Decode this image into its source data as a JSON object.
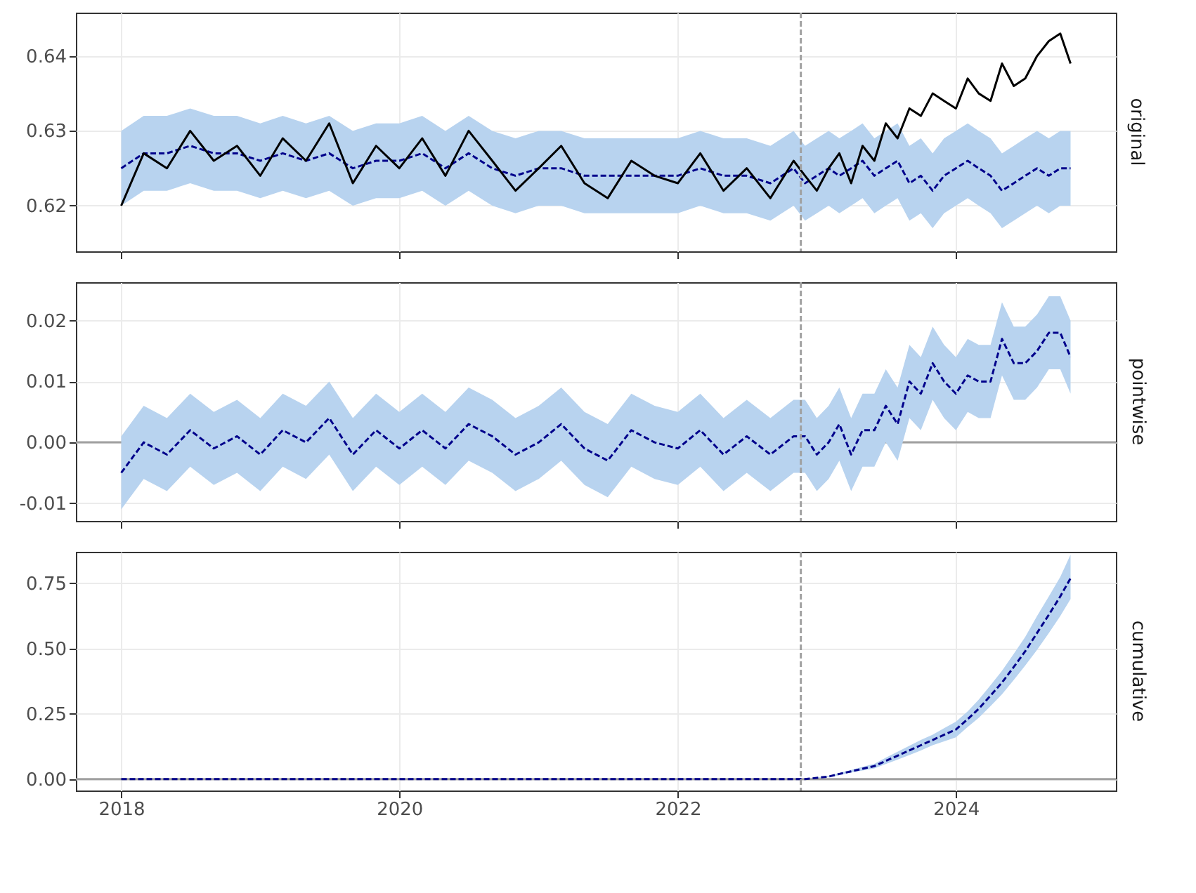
{
  "chart_data": [
    {
      "type": "line",
      "y2label": "original",
      "x": [
        "2018-01-01",
        "2018-03-01",
        "2018-05-01",
        "2018-07-01",
        "2018-09-01",
        "2018-11-01",
        "2019-01-01",
        "2019-03-01",
        "2019-05-01",
        "2019-07-01",
        "2019-09-01",
        "2019-11-01",
        "2020-01-01",
        "2020-03-01",
        "2020-05-01",
        "2020-07-01",
        "2020-09-01",
        "2020-11-01",
        "2021-01-01",
        "2021-03-01",
        "2021-05-01",
        "2021-07-01",
        "2021-09-01",
        "2021-11-01",
        "2022-01-01",
        "2022-03-01",
        "2022-05-01",
        "2022-07-01",
        "2022-09-01",
        "2022-11-01",
        "2022-12-01",
        "2023-01-01",
        "2023-02-01",
        "2023-03-01",
        "2023-04-01",
        "2023-05-01",
        "2023-06-01",
        "2023-07-01",
        "2023-08-01",
        "2023-09-01",
        "2023-10-01",
        "2023-11-01",
        "2023-12-01",
        "2024-01-01",
        "2024-02-01",
        "2024-03-01",
        "2024-04-01",
        "2024-05-01",
        "2024-06-01",
        "2024-07-01",
        "2024-08-01",
        "2024-09-01",
        "2024-10-01",
        "2024-10-28"
      ],
      "xlim": [
        "2017-09-04",
        "2025-02-24"
      ],
      "xticks": [
        "2018",
        "2020",
        "2022",
        "2024"
      ],
      "ylim": [
        0.6139,
        0.6458
      ],
      "yticks": [
        0.62,
        0.63,
        0.64
      ],
      "grid": true,
      "tick_labels": "y",
      "ref_lines": [
        {
          "axis": "x",
          "value": "2022-11-20",
          "color": "#a0a0a0",
          "line_style": "dashed"
        }
      ],
      "series": [
        {
          "color": "#00008b",
          "line_style": "dashed",
          "values": [
            0.625,
            0.627,
            0.627,
            0.628,
            0.627,
            0.627,
            0.626,
            0.627,
            0.626,
            0.627,
            0.625,
            0.626,
            0.626,
            0.627,
            0.625,
            0.627,
            0.625,
            0.624,
            0.625,
            0.625,
            0.624,
            0.624,
            0.624,
            0.624,
            0.624,
            0.625,
            0.624,
            0.624,
            0.623,
            0.625,
            0.623,
            0.624,
            0.625,
            0.624,
            0.625,
            0.626,
            0.624,
            0.625,
            0.626,
            0.623,
            0.624,
            0.622,
            0.624,
            0.625,
            0.626,
            0.625,
            0.624,
            0.622,
            0.623,
            0.624,
            0.625,
            0.624,
            0.625,
            0.625
          ],
          "lower": [
            0.62,
            0.622,
            0.622,
            0.623,
            0.622,
            0.622,
            0.621,
            0.622,
            0.621,
            0.622,
            0.62,
            0.621,
            0.621,
            0.622,
            0.62,
            0.622,
            0.62,
            0.619,
            0.62,
            0.62,
            0.619,
            0.619,
            0.619,
            0.619,
            0.619,
            0.62,
            0.619,
            0.619,
            0.618,
            0.62,
            0.618,
            0.619,
            0.62,
            0.619,
            0.62,
            0.621,
            0.619,
            0.62,
            0.621,
            0.618,
            0.619,
            0.617,
            0.619,
            0.62,
            0.621,
            0.62,
            0.619,
            0.617,
            0.618,
            0.619,
            0.62,
            0.619,
            0.62,
            0.62
          ],
          "upper": [
            0.63,
            0.632,
            0.632,
            0.633,
            0.632,
            0.632,
            0.631,
            0.632,
            0.631,
            0.632,
            0.63,
            0.631,
            0.631,
            0.632,
            0.63,
            0.632,
            0.63,
            0.629,
            0.63,
            0.63,
            0.629,
            0.629,
            0.629,
            0.629,
            0.629,
            0.63,
            0.629,
            0.629,
            0.628,
            0.63,
            0.628,
            0.629,
            0.63,
            0.629,
            0.63,
            0.631,
            0.629,
            0.63,
            0.631,
            0.628,
            0.629,
            0.627,
            0.629,
            0.63,
            0.631,
            0.63,
            0.629,
            0.627,
            0.628,
            0.629,
            0.63,
            0.629,
            0.63,
            0.63
          ]
        },
        {
          "color": "#000000",
          "line_style": "solid",
          "values": [
            0.62,
            0.627,
            0.625,
            0.63,
            0.626,
            0.628,
            0.624,
            0.629,
            0.626,
            0.631,
            0.623,
            0.628,
            0.625,
            0.629,
            0.624,
            0.63,
            0.626,
            0.622,
            0.625,
            0.628,
            0.623,
            0.621,
            0.626,
            0.624,
            0.623,
            0.627,
            0.622,
            0.625,
            0.621,
            0.626,
            0.624,
            0.622,
            0.625,
            0.627,
            0.623,
            0.628,
            0.626,
            0.631,
            0.629,
            0.633,
            0.632,
            0.635,
            0.634,
            0.633,
            0.637,
            0.635,
            0.634,
            0.639,
            0.636,
            0.637,
            0.64,
            0.642,
            0.643,
            0.639
          ]
        }
      ]
    },
    {
      "type": "line",
      "y2label": "pointwise",
      "x": [
        "2018-01-01",
        "2018-03-01",
        "2018-05-01",
        "2018-07-01",
        "2018-09-01",
        "2018-11-01",
        "2019-01-01",
        "2019-03-01",
        "2019-05-01",
        "2019-07-01",
        "2019-09-01",
        "2019-11-01",
        "2020-01-01",
        "2020-03-01",
        "2020-05-01",
        "2020-07-01",
        "2020-09-01",
        "2020-11-01",
        "2021-01-01",
        "2021-03-01",
        "2021-05-01",
        "2021-07-01",
        "2021-09-01",
        "2021-11-01",
        "2022-01-01",
        "2022-03-01",
        "2022-05-01",
        "2022-07-01",
        "2022-09-01",
        "2022-11-01",
        "2022-12-01",
        "2023-01-01",
        "2023-02-01",
        "2023-03-01",
        "2023-04-01",
        "2023-05-01",
        "2023-06-01",
        "2023-07-01",
        "2023-08-01",
        "2023-09-01",
        "2023-10-01",
        "2023-11-01",
        "2023-12-01",
        "2024-01-01",
        "2024-02-01",
        "2024-03-01",
        "2024-04-01",
        "2024-05-01",
        "2024-06-01",
        "2024-07-01",
        "2024-08-01",
        "2024-09-01",
        "2024-10-01",
        "2024-10-28"
      ],
      "xlim": [
        "2017-09-04",
        "2025-02-24"
      ],
      "xticks": [
        "2018",
        "2020",
        "2022",
        "2024"
      ],
      "ylim": [
        -0.0129,
        0.0263
      ],
      "yticks": [
        {
          "value": -0.01,
          "label": "-0.01"
        },
        {
          "value": 0,
          "label": "0.00"
        },
        {
          "value": 0.01,
          "label": "0.01"
        },
        {
          "value": 0.02,
          "label": "0.02"
        }
      ],
      "grid": true,
      "tick_labels": "y",
      "ref_lines": [
        {
          "axis": "x",
          "value": "2022-11-20",
          "color": "#a0a0a0",
          "line_style": "dashed"
        },
        {
          "axis": "y",
          "value": 0,
          "color": "#a0a0a0",
          "line_style": "solid"
        }
      ],
      "series": [
        {
          "color": "#00008b",
          "line_style": "dashed",
          "values": [
            -0.005,
            0,
            -0.002,
            0.002,
            -0.001,
            0.001,
            -0.002,
            0.002,
            0,
            0.004,
            -0.002,
            0.002,
            -0.001,
            0.002,
            -0.001,
            0.003,
            0.001,
            -0.002,
            0,
            0.003,
            -0.001,
            -0.003,
            0.002,
            0,
            -0.001,
            0.002,
            -0.002,
            0.001,
            -0.002,
            0.001,
            0.001,
            -0.002,
            0,
            0.003,
            -0.002,
            0.002,
            0.002,
            0.006,
            0.003,
            0.01,
            0.008,
            0.013,
            0.01,
            0.008,
            0.011,
            0.01,
            0.01,
            0.017,
            0.013,
            0.013,
            0.015,
            0.018,
            0.018,
            0.014
          ],
          "lower": [
            -0.011,
            -0.006,
            -0.008,
            -0.004,
            -0.007,
            -0.005,
            -0.008,
            -0.004,
            -0.006,
            -0.002,
            -0.008,
            -0.004,
            -0.007,
            -0.004,
            -0.007,
            -0.003,
            -0.005,
            -0.008,
            -0.006,
            -0.003,
            -0.007,
            -0.009,
            -0.004,
            -0.006,
            -0.007,
            -0.004,
            -0.008,
            -0.005,
            -0.008,
            -0.005,
            -0.005,
            -0.008,
            -0.006,
            -0.003,
            -0.008,
            -0.004,
            -0.004,
            0,
            -0.003,
            0.004,
            0.002,
            0.007,
            0.004,
            0.002,
            0.005,
            0.004,
            0.004,
            0.011,
            0.007,
            0.007,
            0.009,
            0.012,
            0.012,
            0.008
          ],
          "upper": [
            0.001,
            0.006,
            0.004,
            0.008,
            0.005,
            0.007,
            0.004,
            0.008,
            0.006,
            0.01,
            0.004,
            0.008,
            0.005,
            0.008,
            0.005,
            0.009,
            0.007,
            0.004,
            0.006,
            0.009,
            0.005,
            0.003,
            0.008,
            0.006,
            0.005,
            0.008,
            0.004,
            0.007,
            0.004,
            0.007,
            0.007,
            0.004,
            0.006,
            0.009,
            0.004,
            0.008,
            0.008,
            0.012,
            0.009,
            0.016,
            0.014,
            0.019,
            0.016,
            0.014,
            0.017,
            0.016,
            0.016,
            0.023,
            0.019,
            0.019,
            0.021,
            0.024,
            0.024,
            0.02
          ]
        }
      ]
    },
    {
      "type": "line",
      "y2label": "cumulative",
      "x": [
        "2018-01-01",
        "2018-03-01",
        "2018-05-01",
        "2018-07-01",
        "2018-09-01",
        "2018-11-01",
        "2019-01-01",
        "2019-03-01",
        "2019-05-01",
        "2019-07-01",
        "2019-09-01",
        "2019-11-01",
        "2020-01-01",
        "2020-03-01",
        "2020-05-01",
        "2020-07-01",
        "2020-09-01",
        "2020-11-01",
        "2021-01-01",
        "2021-03-01",
        "2021-05-01",
        "2021-07-01",
        "2021-09-01",
        "2021-11-01",
        "2022-01-01",
        "2022-03-01",
        "2022-05-01",
        "2022-07-01",
        "2022-09-01",
        "2022-11-01",
        "2022-12-01",
        "2023-01-01",
        "2023-02-01",
        "2023-03-01",
        "2023-04-01",
        "2023-05-01",
        "2023-06-01",
        "2023-07-01",
        "2023-08-01",
        "2023-09-01",
        "2023-10-01",
        "2023-11-01",
        "2023-12-01",
        "2024-01-01",
        "2024-02-01",
        "2024-03-01",
        "2024-04-01",
        "2024-05-01",
        "2024-06-01",
        "2024-07-01",
        "2024-08-01",
        "2024-09-01",
        "2024-10-01",
        "2024-10-28"
      ],
      "xlim": [
        "2017-09-04",
        "2025-02-24"
      ],
      "xticks": [
        "2018",
        "2020",
        "2022",
        "2024"
      ],
      "ylim": [
        -0.0435,
        0.871
      ],
      "yticks": [
        {
          "value": 0,
          "label": "0.00"
        },
        {
          "value": 0.25,
          "label": "0.25"
        },
        {
          "value": 0.5,
          "label": "0.50"
        },
        {
          "value": 0.75,
          "label": "0.75"
        }
      ],
      "grid": true,
      "ref_lines": [
        {
          "axis": "x",
          "value": "2022-11-20",
          "color": "#a0a0a0",
          "line_style": "dashed"
        },
        {
          "axis": "y",
          "value": 0,
          "color": "#a0a0a0",
          "line_style": "solid"
        }
      ],
      "series": [
        {
          "color": "#00008b",
          "line_style": "dashed",
          "values": [
            0,
            0,
            0,
            0,
            0,
            0,
            0,
            0,
            0,
            0,
            0,
            0,
            0,
            0,
            0,
            0,
            0,
            0,
            0,
            0,
            0,
            0,
            0,
            0,
            0,
            0,
            0,
            0,
            0,
            0,
            0,
            0.005,
            0.01,
            0.02,
            0.03,
            0.04,
            0.05,
            0.07,
            0.09,
            0.11,
            0.13,
            0.15,
            0.17,
            0.19,
            0.23,
            0.27,
            0.32,
            0.37,
            0.43,
            0.49,
            0.56,
            0.63,
            0.7,
            0.77
          ],
          "lower": [
            0,
            0,
            0,
            0,
            0,
            0,
            0,
            0,
            0,
            0,
            0,
            0,
            0,
            0,
            0,
            0,
            0,
            0,
            0,
            0,
            0,
            0,
            0,
            0,
            0,
            0,
            0,
            0,
            0,
            0,
            0,
            0.004,
            0.008,
            0.016,
            0.025,
            0.033,
            0.041,
            0.058,
            0.075,
            0.092,
            0.11,
            0.13,
            0.145,
            0.16,
            0.2,
            0.235,
            0.28,
            0.325,
            0.38,
            0.435,
            0.495,
            0.56,
            0.625,
            0.69
          ],
          "upper": [
            0,
            0,
            0,
            0,
            0,
            0,
            0,
            0,
            0,
            0,
            0,
            0,
            0,
            0,
            0,
            0,
            0,
            0,
            0,
            0,
            0,
            0,
            0,
            0,
            0,
            0,
            0,
            0,
            0,
            0,
            0,
            0.006,
            0.012,
            0.024,
            0.035,
            0.047,
            0.059,
            0.082,
            0.105,
            0.128,
            0.15,
            0.17,
            0.195,
            0.22,
            0.26,
            0.305,
            0.36,
            0.415,
            0.48,
            0.545,
            0.625,
            0.7,
            0.775,
            0.86
          ]
        }
      ]
    }
  ]
}
